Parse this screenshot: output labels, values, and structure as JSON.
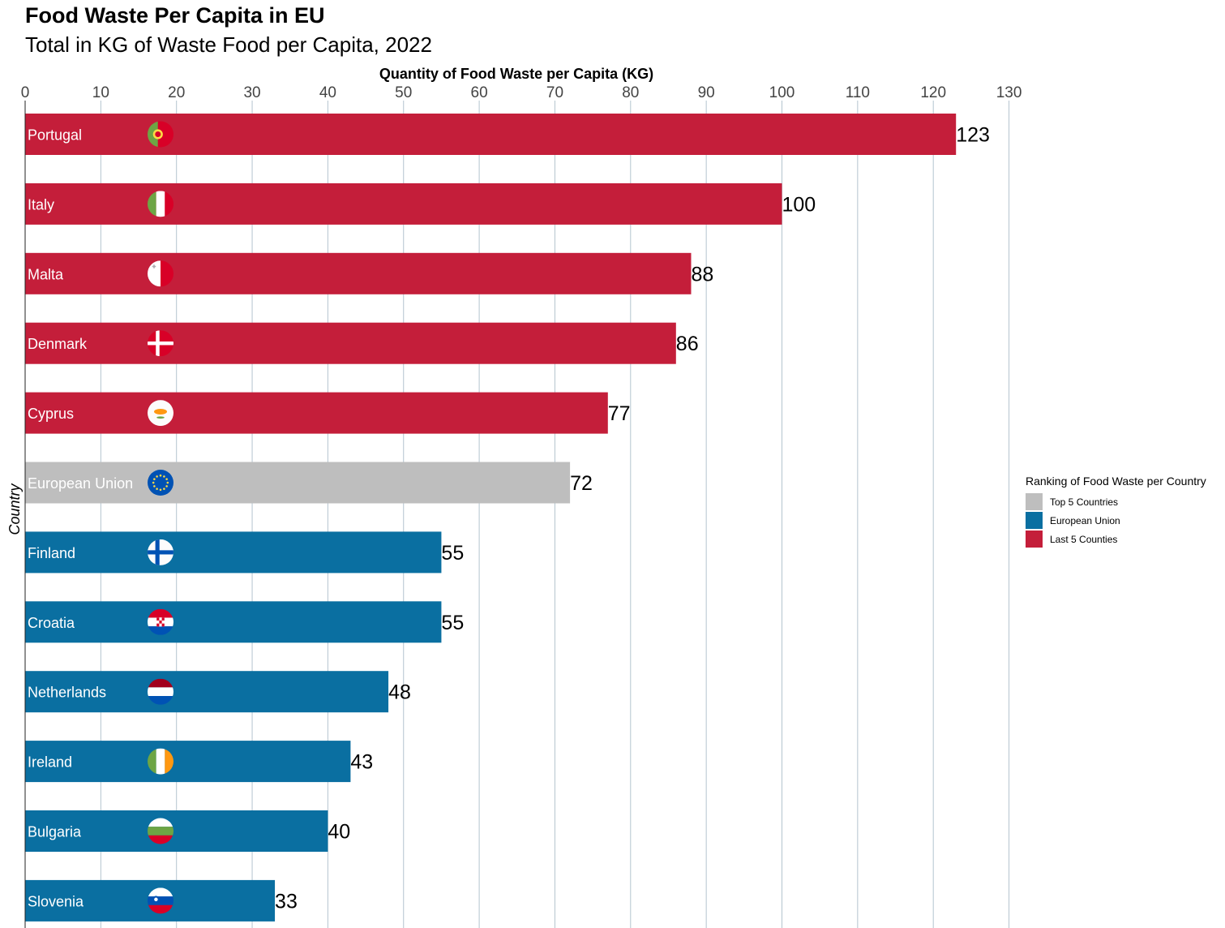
{
  "chart_data": {
    "type": "bar",
    "orientation": "horizontal",
    "title": "Food Waste Per Capita in EU",
    "subtitle": "Total in KG of Waste Food per Capita, 2022",
    "xlabel": "Quantity of Food Waste per Capita (KG)",
    "ylabel": "Country",
    "xlim": [
      0,
      130
    ],
    "x_ticks": [
      0,
      10,
      20,
      30,
      40,
      50,
      60,
      70,
      80,
      90,
      100,
      110,
      120,
      130
    ],
    "x_axis_position": "top",
    "grid": "vertical",
    "categories": [
      "Portugal",
      "Italy",
      "Malta",
      "Denmark",
      "Cyprus",
      "European Union",
      "Finland",
      "Croatia",
      "Netherlands",
      "Ireland",
      "Bulgaria",
      "Slovenia"
    ],
    "values": [
      123,
      100,
      88,
      86,
      77,
      72,
      55,
      55,
      48,
      43,
      40,
      33
    ],
    "groups": [
      "Last 5 Counties",
      "Last 5 Counties",
      "Last 5 Counties",
      "Last 5 Counties",
      "Last 5 Counties",
      "Top 5 Countries",
      "European Union",
      "European Union",
      "European Union",
      "European Union",
      "European Union",
      "European Union"
    ],
    "legend": {
      "title": "Ranking of Food Waste per Country",
      "placement": "right",
      "items": [
        {
          "label": "Top 5 Countries",
          "color": "#bebebe"
        },
        {
          "label": "European Union",
          "color": "#0a6fa1"
        },
        {
          "label": "Last 5 Counties",
          "color": "#c41e3a"
        }
      ]
    },
    "flags": [
      "portugal-flag-icon",
      "italy-flag-icon",
      "malta-flag-icon",
      "denmark-flag-icon",
      "cyprus-flag-icon",
      "eu-flag-icon",
      "finland-flag-icon",
      "croatia-flag-icon",
      "netherlands-flag-icon",
      "ireland-flag-icon",
      "bulgaria-flag-icon",
      "slovenia-flag-icon"
    ]
  }
}
